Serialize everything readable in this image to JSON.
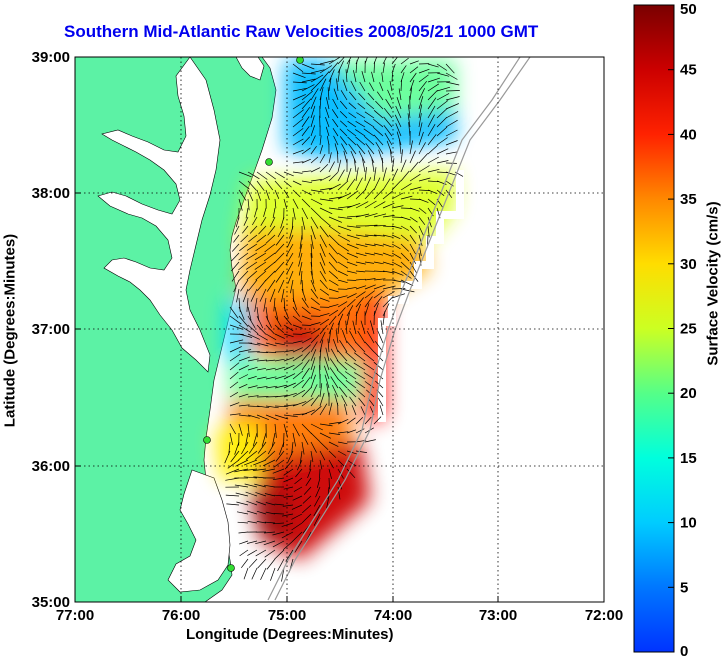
{
  "title": "Southern Mid-Atlantic Raw Velocities 2008/05/21 1000 GMT",
  "x_axis": {
    "label": "Longitude (Degrees:Minutes)",
    "ticks": [
      "77:00",
      "76:00",
      "75:00",
      "74:00",
      "73:00",
      "72:00"
    ],
    "range_deg_west": [
      77,
      72
    ]
  },
  "y_axis": {
    "label": "Latitude (Degrees:Minutes)",
    "ticks": [
      "39:00",
      "38:00",
      "37:00",
      "36:00",
      "35:00"
    ],
    "range_deg_north": [
      35,
      39
    ]
  },
  "colorbar": {
    "label": "Surface Velocity (cm/s)",
    "ticks": [
      "0",
      "5",
      "10",
      "15",
      "20",
      "25",
      "30",
      "35",
      "40",
      "45",
      "50"
    ],
    "range": [
      0,
      50
    ],
    "colors": [
      "#0033ff",
      "#00bbff",
      "#00ffee",
      "#44ff99",
      "#bbff33",
      "#ffee00",
      "#ffaa00",
      "#ff5500",
      "#ee0000",
      "#aa0000",
      "#7a0000"
    ]
  },
  "map": {
    "land_color": "#5cf2a5",
    "water_color": "#ffffff",
    "grid": "dotted",
    "station_markers_color": "#33dd33",
    "bathymetry_color": "#999999"
  }
}
